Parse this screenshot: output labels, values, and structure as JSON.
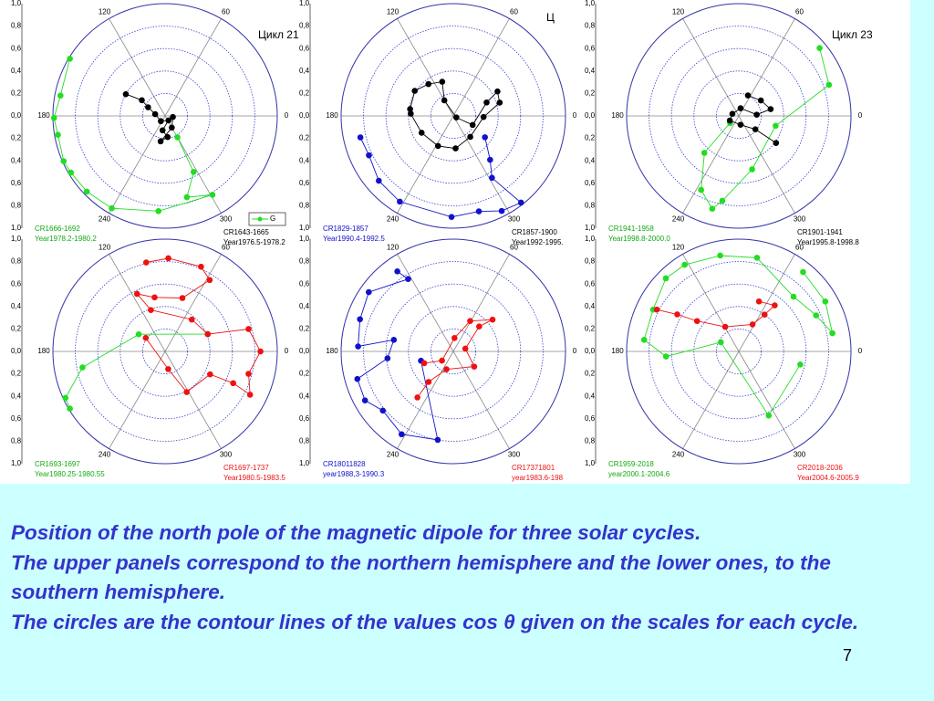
{
  "chart_data": [
    {
      "type": "polar",
      "title": "Цикл 21",
      "rlim": [
        0,
        1
      ],
      "rticks": [
        {
          "value": 0,
          "label": "0,0"
        },
        {
          "value": 0.2,
          "label": "0,2"
        },
        {
          "value": 0.4,
          "label": "0,4"
        },
        {
          "value": 0.6,
          "label": "0,6"
        },
        {
          "value": 0.8,
          "label": "0,8"
        },
        {
          "value": 1,
          "label": "1,0"
        }
      ],
      "thetaticks": [
        0,
        60,
        120,
        180,
        240,
        300
      ],
      "legend_text": "G",
      "series": [
        {
          "name": "CR1666-1692",
          "period": "Year1978.2-1980.2",
          "color": "#22dd22",
          "theta": [
            149,
            169,
            181,
            190,
            204,
            211,
            224,
            240,
            266,
            301,
            285,
            297,
            300
          ],
          "r": [
            0.99,
            0.95,
            0.99,
            0.97,
            0.99,
            0.98,
            0.97,
            0.95,
            0.85,
            0.82,
            0.75,
            0.56,
            0.22
          ]
        },
        {
          "name": "CR1643-1665",
          "period": "Year1976.5-1978.2",
          "color": "#000000",
          "theta": [
            151,
            146,
            153,
            170,
            231,
            307,
            260,
            277,
            260,
            300,
            352
          ],
          "r": [
            0.4,
            0.25,
            0.17,
            0.09,
            0.06,
            0.05,
            0.13,
            0.19,
            0.23,
            0.12,
            0.07
          ]
        }
      ]
    },
    {
      "type": "polar",
      "title": "Ц",
      "rlim": [
        0,
        1
      ],
      "rticks": [
        {
          "value": 0,
          "label": "0,0"
        },
        {
          "value": 0.2,
          "label": "0,2"
        },
        {
          "value": 0.4,
          "label": "0,4"
        },
        {
          "value": 0.6,
          "label": "0,6"
        },
        {
          "value": 0.8,
          "label": "0,8"
        },
        {
          "value": 1,
          "label": "1,0"
        }
      ],
      "thetaticks": [
        0,
        60,
        120,
        180,
        240,
        300
      ],
      "series": [
        {
          "name": "CR1829-1857",
          "period": "Year1990.4-1992.5",
          "color": "#1111cc",
          "theta": [
            193,
            205,
            221,
            238,
            269,
            285,
            297,
            308,
            302,
            310,
            326
          ],
          "r": [
            0.85,
            0.83,
            0.88,
            0.9,
            0.9,
            0.88,
            0.95,
            0.98,
            0.65,
            0.51,
            0.34
          ]
        },
        {
          "name": "CR1857-1900",
          "period": "Year1992-1995.",
          "color": "#000000",
          "theta": [
            171,
            147,
            128,
            108,
            120,
            333,
            335,
            22,
            29,
            16,
            358,
            309,
            274,
            243,
            208,
            177
          ],
          "r": [
            0.39,
            0.41,
            0.36,
            0.32,
            0.16,
            0.03,
            0.19,
            0.32,
            0.45,
            0.43,
            0.27,
            0.24,
            0.29,
            0.3,
            0.32,
            0.38
          ]
        }
      ]
    },
    {
      "type": "polar",
      "title": "Цикл 23",
      "rlim": [
        0,
        1
      ],
      "rticks": [
        {
          "value": 0,
          "label": "0,0"
        },
        {
          "value": 0.2,
          "label": "0,2"
        },
        {
          "value": 0.4,
          "label": "0,4"
        },
        {
          "value": 0.6,
          "label": "0,6"
        },
        {
          "value": 0.8,
          "label": "0,8"
        },
        {
          "value": 1,
          "label": "1,0"
        }
      ],
      "thetaticks": [
        0,
        60,
        120,
        180,
        240,
        300
      ],
      "series": [
        {
          "name": "CR1941-1958",
          "period": "Year1998.8-2000.0",
          "color": "#22dd22",
          "theta": [
            40,
            19,
            345,
            284,
            259,
            254,
            243,
            227,
            219
          ],
          "r": [
            0.94,
            0.85,
            0.34,
            0.49,
            0.77,
            0.86,
            0.74,
            0.45,
            0.1
          ]
        },
        {
          "name": "CR1901-1941",
          "period": "Year1995.8-1998.8",
          "color": "#000000",
          "theta": [
            66,
            35,
            12,
            4,
            77,
            162,
            207,
            281,
            321,
            324
          ],
          "r": [
            0.2,
            0.24,
            0.29,
            0.16,
            0.07,
            0.06,
            0.09,
            0.08,
            0.19,
            0.41
          ]
        }
      ]
    },
    {
      "type": "polar",
      "rlim": [
        0,
        1
      ],
      "rticks": [
        {
          "value": 0,
          "label": "0,0"
        },
        {
          "value": 0.2,
          "label": "0,2"
        },
        {
          "value": 0.4,
          "label": "0,4"
        },
        {
          "value": 0.6,
          "label": "0,6"
        },
        {
          "value": 0.8,
          "label": "0,8"
        },
        {
          "value": 1,
          "label": "1,0"
        }
      ],
      "thetaticks": [
        0,
        60,
        120,
        180,
        240,
        300
      ],
      "series": [
        {
          "name": "CR1693-1697",
          "period": "Year1980.25-1980.55",
          "color": "#22dd22",
          "theta": [
            22,
            147,
            191,
            205,
            211
          ],
          "r": [
            0.41,
            0.28,
            0.75,
            0.98,
            0.99
          ]
        },
        {
          "name": "CR1697-1737",
          "period": "Year1980.5-1983.5",
          "color": "#ee1111",
          "theta": [
            102,
            88,
            67,
            58,
            72,
            101,
            116,
            109,
            50,
            22,
            15,
            0,
            345,
            333,
            335,
            333,
            298,
            280,
            145
          ],
          "r": [
            0.81,
            0.83,
            0.82,
            0.75,
            0.5,
            0.49,
            0.57,
            0.39,
            0.37,
            0.41,
            0.77,
            0.85,
            0.77,
            0.85,
            0.67,
            0.45,
            0.41,
            0.16,
            0.21
          ]
        }
      ]
    },
    {
      "type": "polar",
      "rlim": [
        0,
        1
      ],
      "rticks": [
        {
          "value": 0,
          "label": "0,0"
        },
        {
          "value": 0.2,
          "label": "0,2"
        },
        {
          "value": 0.4,
          "label": "0,4"
        },
        {
          "value": 0.6,
          "label": "0,6"
        },
        {
          "value": 0.8,
          "label": "0,8"
        },
        {
          "value": 1,
          "label": "1,0"
        }
      ],
      "thetaticks": [
        0,
        60,
        120,
        180,
        240,
        300
      ],
      "series": [
        {
          "name": "CR18011828",
          "period": "year1988,3-1990.3",
          "color": "#1111cc",
          "theta": [
            125,
            122,
            145,
            161,
            177,
            169,
            186,
            196,
            209,
            220,
            238,
            260,
            196
          ],
          "r": [
            0.87,
            0.76,
            0.92,
            0.88,
            0.85,
            0.54,
            0.59,
            0.89,
            0.9,
            0.82,
            0.87,
            0.8,
            0.3
          ]
        },
        {
          "name": "CR17371801",
          "period": "year1983.6-198",
          "color": "#ee1111",
          "theta": [
            232,
            231,
            249,
            324,
            13,
            44,
            39,
            61,
            85,
            219,
            202
          ],
          "r": [
            0.52,
            0.35,
            0.17,
            0.23,
            0.11,
            0.32,
            0.45,
            0.31,
            0.12,
            0.13,
            0.28
          ]
        }
      ]
    },
    {
      "type": "polar",
      "rlim": [
        0,
        1
      ],
      "rticks": [
        {
          "value": 0,
          "label": "0,0"
        },
        {
          "value": 0.2,
          "label": "0,2"
        },
        {
          "value": 0.4,
          "label": "0,4"
        },
        {
          "value": 0.6,
          "label": "0,6"
        },
        {
          "value": 0.8,
          "label": "0,8"
        },
        {
          "value": 1,
          "label": "1,0"
        }
      ],
      "thetaticks": [
        0,
        60,
        120,
        180,
        240,
        300
      ],
      "series": [
        {
          "name": "CR1959-2018",
          "period": "year2000.1-2004.6",
          "color": "#22dd22",
          "theta": [
            51,
            30,
            11,
            25,
            45,
            79,
            101,
            122,
            135,
            154,
            173,
            184,
            153,
            295,
            348
          ],
          "r": [
            0.91,
            0.89,
            0.85,
            0.76,
            0.69,
            0.85,
            0.87,
            0.91,
            0.92,
            0.85,
            0.85,
            0.65,
            0.18,
            0.63,
            0.56
          ]
        },
        {
          "name": "CR2018-2036",
          "period": "Year2004.6-2005.9",
          "color": "#ee1111",
          "theta": [
            153,
            149,
            144,
            119,
            63,
            55,
            52,
            68
          ],
          "r": [
            0.82,
            0.64,
            0.46,
            0.25,
            0.27,
            0.4,
            0.52,
            0.48
          ]
        }
      ]
    }
  ],
  "caption": [
    "Position of the north pole of the magnetic dipole for three solar cycles.",
    "The upper panels correspond to the northern hemisphere and the lower ones, to the southern hemisphere.",
    "The circles are the contour lines of the values cos θ  given on the scales for each cycle."
  ],
  "page_number": "7"
}
